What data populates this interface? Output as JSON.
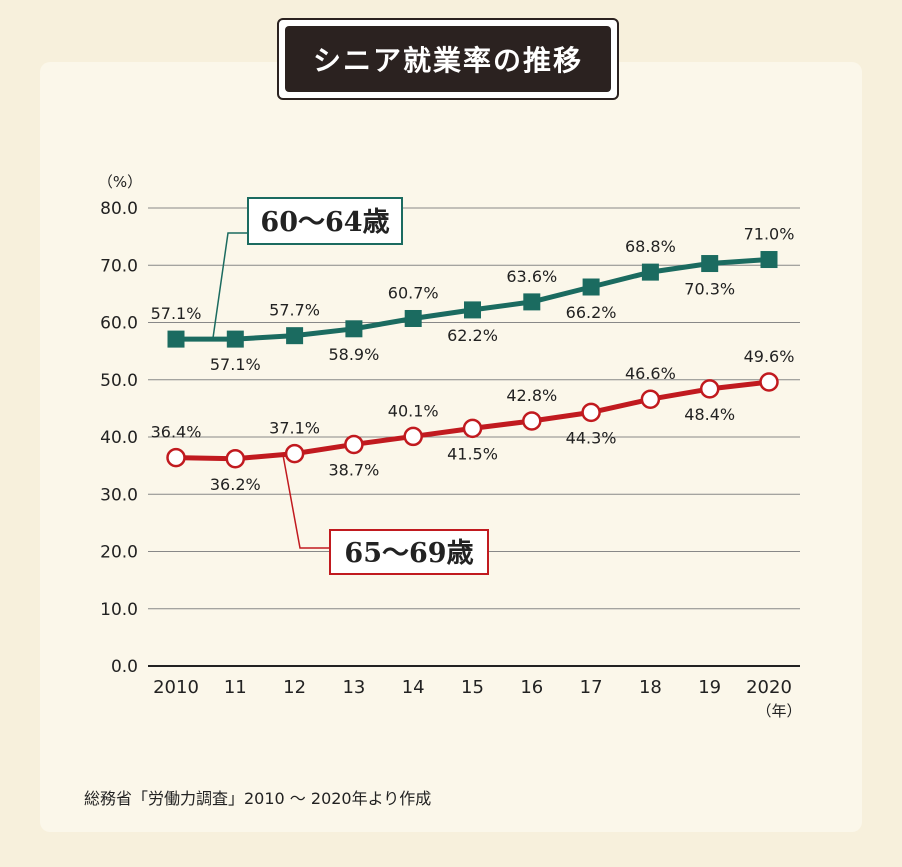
{
  "title": "シニア就業率の推移",
  "source": "総務省「労働力調査」2010 ～ 2020年より作成",
  "colors": {
    "teal": "#1b6b60",
    "red": "#c11a1f",
    "grid": "#888888"
  },
  "chart_data": {
    "type": "line",
    "unit_label": "（%）",
    "year_label": "（年）",
    "ylim": [
      0,
      80
    ],
    "yticks": [
      "0.0",
      "10.0",
      "20.0",
      "30.0",
      "40.0",
      "50.0",
      "60.0",
      "70.0",
      "80.0"
    ],
    "categories": [
      "2010",
      "11",
      "12",
      "13",
      "14",
      "15",
      "16",
      "17",
      "18",
      "19",
      "2020"
    ],
    "series": [
      {
        "name": "60～64歳",
        "marker": "square",
        "values": [
          57.1,
          57.1,
          57.7,
          58.9,
          60.7,
          62.2,
          63.6,
          66.2,
          68.8,
          70.3,
          71.0
        ],
        "labels": [
          "57.1%",
          "57.1%",
          "57.7%",
          "58.9%",
          "60.7%",
          "62.2%",
          "63.6%",
          "66.2%",
          "68.8%",
          "70.3%",
          "71.0%"
        ]
      },
      {
        "name": "65～69歳",
        "marker": "circle",
        "values": [
          36.4,
          36.2,
          37.1,
          38.7,
          40.1,
          41.5,
          42.8,
          44.3,
          46.6,
          48.4,
          49.6
        ],
        "labels": [
          "36.4%",
          "36.2%",
          "37.1%",
          "38.7%",
          "40.1%",
          "41.5%",
          "42.8%",
          "44.3%",
          "46.6%",
          "48.4%",
          "49.6%"
        ]
      }
    ]
  }
}
